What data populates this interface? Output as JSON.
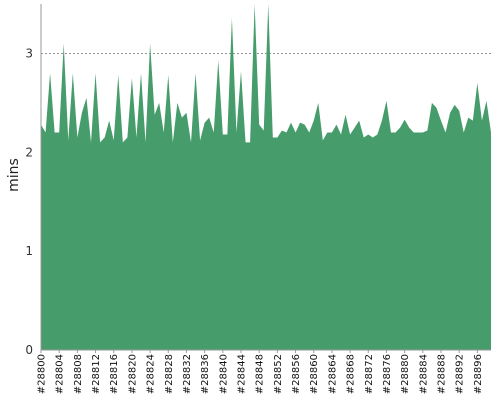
{
  "chart_data": {
    "type": "area",
    "title": "",
    "xlabel": "",
    "ylabel": "mins",
    "ylim": [
      0,
      3.5
    ],
    "yticks": [
      0,
      1,
      2,
      3
    ],
    "grid": "horizontal-dashed",
    "legend": "none",
    "colors": {
      "fill": "#469d6b",
      "axis": "#999999",
      "grid": "#555555"
    },
    "x_start": 28800,
    "x_label_prefix": "#",
    "x_tick_labels": [
      "#28800",
      "#28804",
      "#28808",
      "#28812",
      "#28816",
      "#28820",
      "#28824",
      "#28828",
      "#28832",
      "#28836",
      "#28840",
      "#28844",
      "#28848",
      "#28852",
      "#28856",
      "#28860",
      "#28864",
      "#28868",
      "#28872",
      "#28876",
      "#28880",
      "#28884",
      "#28888",
      "#28892",
      "#28896"
    ],
    "values": [
      2.28,
      2.2,
      2.8,
      2.2,
      2.2,
      3.1,
      2.12,
      2.8,
      2.15,
      2.4,
      2.55,
      2.1,
      2.8,
      2.1,
      2.15,
      2.32,
      2.12,
      2.78,
      2.1,
      2.15,
      2.75,
      2.15,
      2.8,
      2.1,
      3.1,
      2.38,
      2.5,
      2.2,
      2.78,
      2.1,
      2.5,
      2.35,
      2.4,
      2.1,
      2.8,
      2.12,
      2.3,
      2.35,
      2.2,
      2.93,
      2.18,
      2.18,
      3.36,
      2.2,
      2.82,
      2.1,
      2.1,
      3.82,
      2.28,
      2.22,
      3.68,
      2.15,
      2.15,
      2.22,
      2.2,
      2.3,
      2.2,
      2.3,
      2.28,
      2.2,
      2.32,
      2.5,
      2.12,
      2.2,
      2.2,
      2.28,
      2.18,
      2.38,
      2.18,
      2.25,
      2.32,
      2.15,
      2.18,
      2.15,
      2.18,
      2.32,
      2.52,
      2.2,
      2.2,
      2.25,
      2.33,
      2.25,
      2.2,
      2.2,
      2.2,
      2.22,
      2.5,
      2.45,
      2.32,
      2.2,
      2.4,
      2.48,
      2.42,
      2.2,
      2.35,
      2.32,
      2.7,
      2.32,
      2.52,
      2.2
    ]
  }
}
